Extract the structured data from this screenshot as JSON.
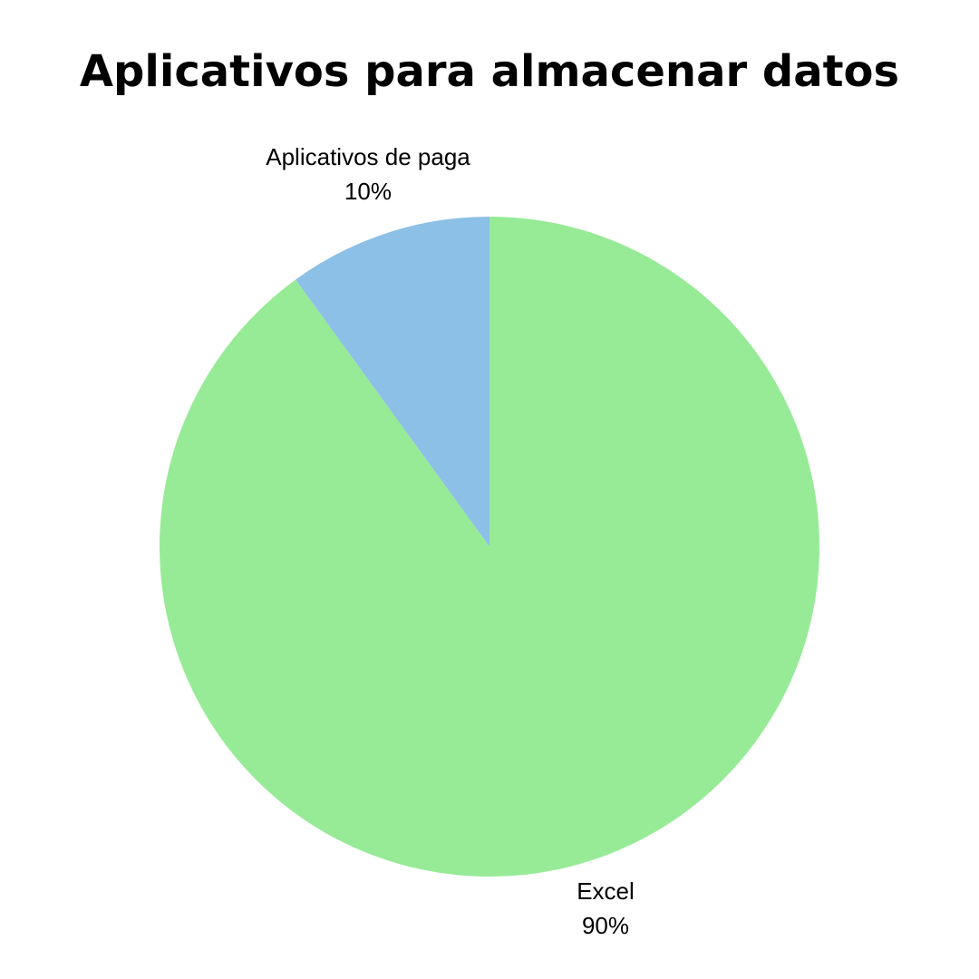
{
  "chart_data": {
    "type": "pie",
    "title": "Aplicativos para almacenar datos",
    "slices": [
      {
        "label": "Excel",
        "value": 90,
        "value_label": "90%",
        "color": "#97EB97"
      },
      {
        "label": "Aplicativos de paga",
        "value": 10,
        "value_label": "10%",
        "color": "#8CC0E6"
      }
    ],
    "start_angle_deg": 0,
    "direction": "clockwise",
    "legend": "none"
  }
}
